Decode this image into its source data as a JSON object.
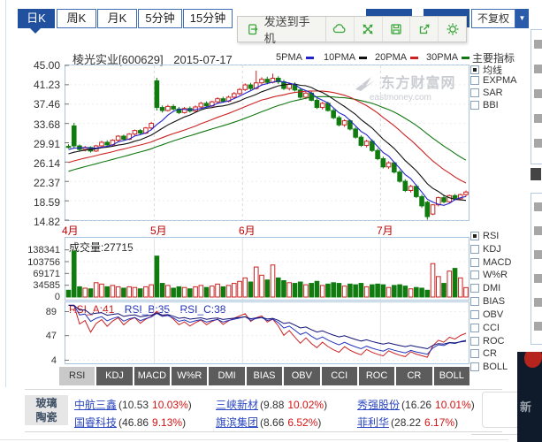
{
  "toolbar": {
    "tabs": [
      {
        "label": "日K",
        "active": true
      },
      {
        "label": "周K",
        "active": false
      },
      {
        "label": "月K",
        "active": false
      },
      {
        "label": "5分钟",
        "active": false
      },
      {
        "label": "15分钟",
        "active": false
      }
    ],
    "send_label": "发送到手机",
    "adjust_label": "不复权",
    "dropdown_arrow": "▼",
    "icons": [
      "send-to-phone-icon",
      "cloud-icon",
      "expand-icon",
      "save-icon",
      "share-icon",
      "settings-icon"
    ]
  },
  "chart_header": {
    "title": "棱光实业[600629]",
    "date": "2015-07-17"
  },
  "right_panel": {
    "main_header": "主要指标",
    "main_items": [
      {
        "label": "均线",
        "checked": true
      },
      {
        "label": "EXPMA",
        "checked": false
      },
      {
        "label": "SAR",
        "checked": false
      },
      {
        "label": "BBI",
        "checked": false
      }
    ],
    "sub_items": [
      {
        "label": "RSI",
        "checked": true
      },
      {
        "label": "KDJ",
        "checked": false
      },
      {
        "label": "MACD",
        "checked": false
      },
      {
        "label": "W%R",
        "checked": false
      },
      {
        "label": "DMI",
        "checked": false
      },
      {
        "label": "BIAS",
        "checked": false
      },
      {
        "label": "OBV",
        "checked": false
      },
      {
        "label": "CCI",
        "checked": false
      },
      {
        "label": "ROC",
        "checked": false
      },
      {
        "label": "CR",
        "checked": false
      },
      {
        "label": "BOLL",
        "checked": false
      }
    ]
  },
  "watermark": {
    "title": "东方财富网",
    "domain": "eastmoney.com"
  },
  "axes": {
    "price_labels": [
      "45.00",
      "41.23",
      "37.46",
      "33.68",
      "29.91",
      "26.14",
      "22.37",
      "18.59",
      "14.82"
    ],
    "price_values": [
      45.0,
      41.23,
      37.46,
      33.68,
      29.91,
      26.14,
      22.37,
      18.59,
      14.82
    ],
    "month_labels": [
      "4月",
      "5月",
      "6月",
      "7月"
    ],
    "volume_labels": [
      "138341",
      "103756",
      "69171",
      "34585",
      "0"
    ],
    "volume_values": [
      138341,
      103756,
      69171,
      34585
    ],
    "rsi_labels": [
      "89",
      "47",
      "4"
    ],
    "rsi_values": [
      89,
      47,
      4
    ]
  },
  "volume_header": "成交量:27715",
  "rsi_header": {
    "a": "RSI_A:41",
    "b": "RSI_B:35",
    "c": "RSI_C:38"
  },
  "indicator_tabs": [
    "RSI",
    "KDJ",
    "MACD",
    "W%R",
    "DMI",
    "BIAS",
    "OBV",
    "CCI",
    "ROC",
    "CR",
    "BOLL"
  ],
  "bottom": {
    "category_line1": "玻璃",
    "category_line2": "陶瓷",
    "lparen": "(",
    "rparen": ")",
    "rows": [
      [
        {
          "name": "中航三鑫",
          "price": "10.53",
          "pct": "10.03%"
        },
        {
          "name": "三峡新材",
          "price": "9.88",
          "pct": "10.02%"
        },
        {
          "name": "秀强股份",
          "price": "16.26",
          "pct": "10.01%"
        }
      ],
      [
        {
          "name": "国睿科技",
          "price": "46.86",
          "pct": "9.13%"
        },
        {
          "name": "旗滨集团",
          "price": "8.66",
          "pct": "6.52%"
        },
        {
          "name": "菲利华",
          "price": "28.22",
          "pct": "6.17%"
        }
      ]
    ]
  },
  "side_ad": {
    "text": "新"
  },
  "chart_data": {
    "type": "candlestick",
    "title": "棱光实业[600629] 2015-07-17 日K 不复权",
    "price_axis": {
      "min": 14.82,
      "max": 45.0
    },
    "volume_axis": {
      "max": 140000,
      "last_volume": 27715
    },
    "month_indices": [
      0,
      16,
      32,
      57
    ],
    "ma": [
      {
        "label": "5PMA",
        "period": 5,
        "color": "#2222cc"
      },
      {
        "label": "10PMA",
        "period": 10,
        "color": "#111111"
      },
      {
        "label": "20PMA",
        "period": 20,
        "color": "#cc2222"
      },
      {
        "label": "30PMA",
        "period": 30,
        "color": "#117711"
      }
    ],
    "rsi": {
      "periods": [
        6,
        12,
        24
      ],
      "colors": [
        "#cc2222",
        "#2233bb",
        "#111177"
      ],
      "values": [
        41,
        35,
        38
      ]
    },
    "up_color": "#cc2222",
    "down_color": "#107c10",
    "candles": [
      [
        29.2,
        29.6,
        28.8,
        29.0,
        20000
      ],
      [
        33.2,
        33.8,
        28.8,
        29.3,
        135000
      ],
      [
        29.3,
        29.6,
        28.3,
        28.6,
        30000
      ],
      [
        28.6,
        29.3,
        28.2,
        29.0,
        26000
      ],
      [
        29.0,
        29.2,
        28.0,
        28.3,
        24000
      ],
      [
        28.3,
        29.5,
        28.1,
        29.3,
        42000
      ],
      [
        29.3,
        30.3,
        29.0,
        30.0,
        38000
      ],
      [
        30.0,
        30.4,
        29.2,
        29.5,
        30000
      ],
      [
        29.5,
        30.6,
        29.3,
        30.4,
        34000
      ],
      [
        30.4,
        31.4,
        30.1,
        31.2,
        30000
      ],
      [
        31.2,
        31.5,
        30.3,
        30.6,
        26000
      ],
      [
        30.6,
        31.8,
        30.4,
        31.6,
        30000
      ],
      [
        31.6,
        32.5,
        31.2,
        32.3,
        28000
      ],
      [
        32.3,
        32.6,
        31.5,
        31.8,
        24000
      ],
      [
        31.8,
        33.0,
        31.6,
        32.8,
        30000
      ],
      [
        32.8,
        34.0,
        32.5,
        33.7,
        36000
      ],
      [
        42.0,
        42.6,
        36.2,
        36.8,
        120000
      ],
      [
        36.8,
        37.2,
        35.8,
        36.2,
        40000
      ],
      [
        36.2,
        37.3,
        36.0,
        37.0,
        34000
      ],
      [
        37.0,
        37.4,
        36.2,
        36.5,
        26000
      ],
      [
        36.5,
        36.9,
        35.5,
        35.8,
        30000
      ],
      [
        35.8,
        36.9,
        35.6,
        36.6,
        28000
      ],
      [
        36.6,
        37.0,
        35.8,
        36.1,
        24000
      ],
      [
        36.1,
        37.2,
        35.9,
        36.9,
        30000
      ],
      [
        36.9,
        37.9,
        36.6,
        37.6,
        34000
      ],
      [
        37.6,
        38.0,
        36.8,
        37.1,
        28000
      ],
      [
        37.1,
        38.1,
        36.9,
        37.9,
        32000
      ],
      [
        37.9,
        38.8,
        37.6,
        38.5,
        38000
      ],
      [
        38.5,
        38.9,
        37.7,
        38.0,
        30000
      ],
      [
        38.0,
        39.1,
        37.8,
        38.8,
        34000
      ],
      [
        38.8,
        39.8,
        38.5,
        39.5,
        40000
      ],
      [
        39.5,
        40.6,
        39.2,
        40.3,
        46000
      ],
      [
        40.3,
        41.5,
        40.0,
        41.2,
        56000
      ],
      [
        41.2,
        41.6,
        40.2,
        40.5,
        44000
      ],
      [
        40.5,
        44.0,
        40.3,
        41.6,
        88000
      ],
      [
        41.6,
        42.7,
        41.2,
        42.3,
        64000
      ],
      [
        42.3,
        42.8,
        41.3,
        41.7,
        50000
      ],
      [
        41.7,
        43.4,
        41.5,
        42.5,
        94000
      ],
      [
        42.5,
        42.9,
        41.4,
        41.8,
        56000
      ],
      [
        41.8,
        42.2,
        40.2,
        40.5,
        48000
      ],
      [
        40.5,
        41.6,
        40.1,
        41.3,
        42000
      ],
      [
        41.3,
        41.7,
        39.9,
        40.2,
        40000
      ],
      [
        40.2,
        40.6,
        38.5,
        38.8,
        44000
      ],
      [
        38.8,
        39.9,
        38.4,
        39.6,
        36000
      ],
      [
        39.6,
        39.9,
        38.0,
        38.2,
        40000
      ],
      [
        38.2,
        38.6,
        36.5,
        36.8,
        46000
      ],
      [
        36.8,
        37.9,
        36.4,
        37.6,
        34000
      ],
      [
        37.6,
        37.9,
        36.0,
        36.2,
        38000
      ],
      [
        36.2,
        36.6,
        34.5,
        34.8,
        42000
      ],
      [
        34.8,
        35.2,
        33.1,
        33.4,
        40000
      ],
      [
        33.4,
        34.5,
        33.0,
        34.2,
        32000
      ],
      [
        34.2,
        34.5,
        32.3,
        32.6,
        38000
      ],
      [
        32.6,
        33.0,
        30.7,
        31.0,
        36000
      ],
      [
        31.0,
        31.4,
        29.1,
        29.4,
        40000
      ],
      [
        29.4,
        30.5,
        29.0,
        30.2,
        30000
      ],
      [
        30.2,
        30.6,
        28.1,
        28.4,
        36000
      ],
      [
        28.4,
        28.8,
        26.5,
        26.8,
        38000
      ],
      [
        26.8,
        27.2,
        24.9,
        25.2,
        36000
      ],
      [
        25.2,
        26.3,
        24.8,
        26.0,
        28000
      ],
      [
        26.0,
        26.2,
        23.9,
        24.2,
        34000
      ],
      [
        24.2,
        24.6,
        22.1,
        22.4,
        36000
      ],
      [
        22.4,
        22.8,
        20.3,
        20.6,
        32000
      ],
      [
        20.6,
        21.7,
        20.2,
        21.4,
        24000
      ],
      [
        21.4,
        21.8,
        19.1,
        19.4,
        28000
      ],
      [
        19.4,
        19.8,
        17.2,
        17.6,
        26000
      ],
      [
        18.3,
        18.6,
        14.9,
        15.5,
        20000
      ],
      [
        16.0,
        17.9,
        15.8,
        17.8,
        98000
      ],
      [
        17.8,
        19.4,
        17.5,
        19.2,
        60000
      ],
      [
        19.2,
        19.6,
        18.1,
        18.4,
        40000
      ],
      [
        18.4,
        19.8,
        18.2,
        19.6,
        76000
      ],
      [
        19.6,
        19.9,
        18.7,
        19.0,
        84000
      ],
      [
        19.0,
        20.0,
        18.8,
        19.8,
        56000
      ],
      [
        19.8,
        20.6,
        19.4,
        20.3,
        27715
      ]
    ]
  }
}
